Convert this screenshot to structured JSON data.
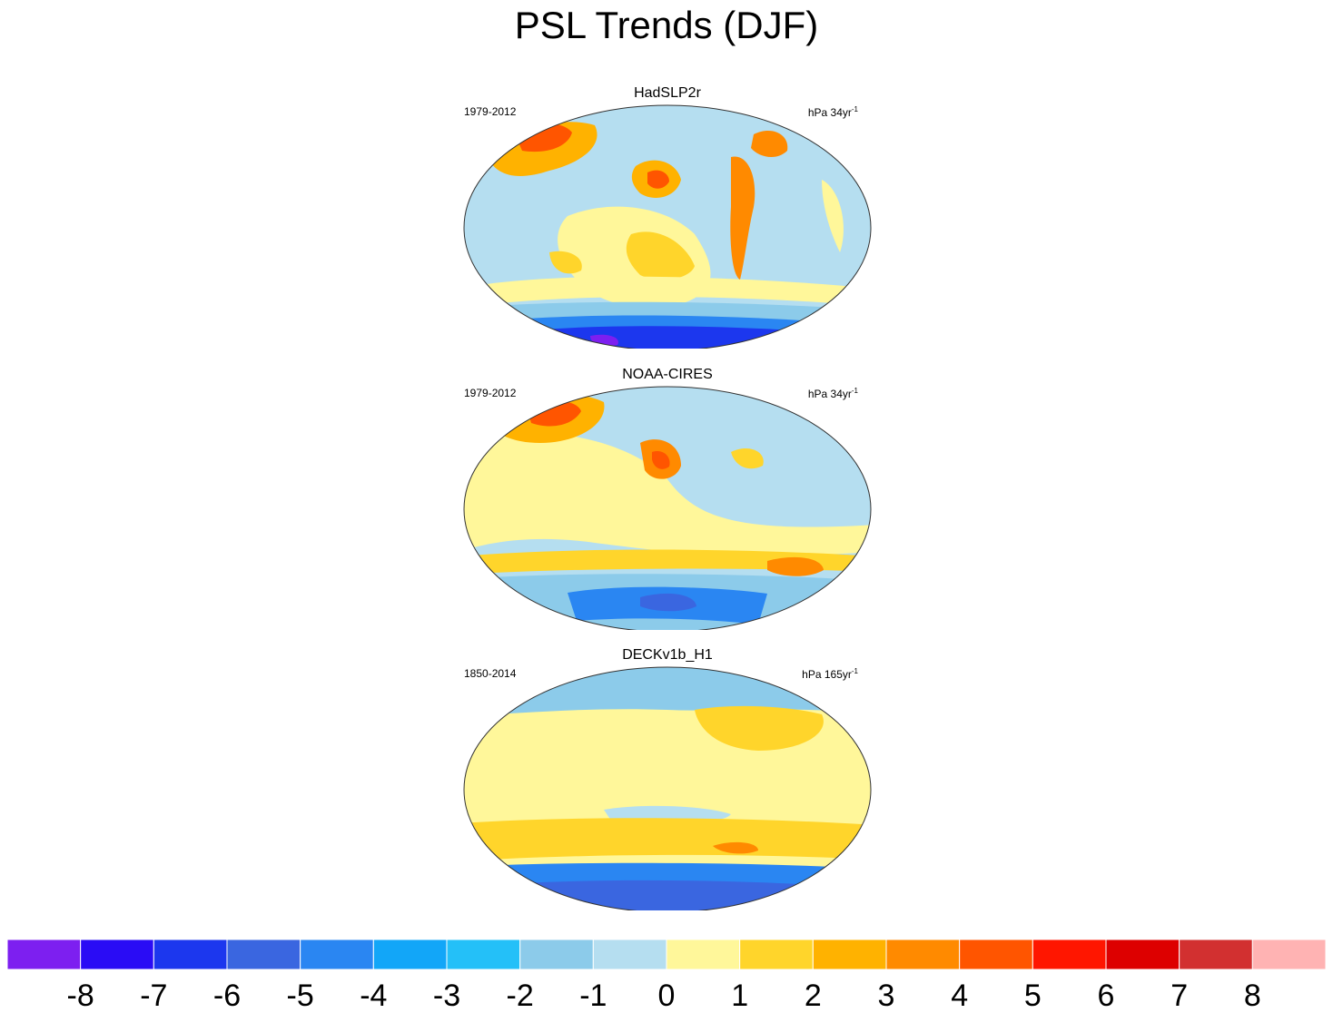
{
  "title": "PSL Trends (DJF)",
  "panels": [
    {
      "name": "HadSLP2r",
      "period": "1979-2012",
      "units": "hPa 34yr",
      "units_sup": "-1",
      "patterns": [
        {
          "kind": "ocean",
          "fill": "#b5def0"
        },
        {
          "fill": "#fff79a"
        },
        {
          "fill": "#ffd52b"
        },
        {
          "fill": "#ffb200"
        },
        {
          "fill": "#ff8a00"
        },
        {
          "fill": "#ff5500"
        },
        {
          "fill": "#8ccbea"
        },
        {
          "fill": "#1e3cf0"
        },
        {
          "fill": "#7a1cf0"
        }
      ]
    },
    {
      "name": "NOAA-CIRES",
      "period": "1979-2012",
      "units": "hPa 34yr",
      "units_sup": "-1"
    },
    {
      "name": "DECKv1b_H1",
      "period": "1850-2014",
      "units": "hPa 165yr",
      "units_sup": "-1"
    }
  ],
  "chart_data": {
    "type": "heatmap",
    "title": "PSL Trends (DJF)",
    "variable": "PSL",
    "season": "DJF",
    "panels": [
      {
        "title": "HadSLP2r",
        "period": "1979-2012",
        "units": "hPa 34yr-1"
      },
      {
        "title": "NOAA-CIRES",
        "period": "1979-2012",
        "units": "hPa 34yr-1"
      },
      {
        "title": "DECKv1b_H1",
        "period": "1850-2014",
        "units": "hPa 165yr-1"
      }
    ],
    "colorbar": {
      "levels": [
        -8,
        -7,
        -6,
        -5,
        -4,
        -3,
        -2,
        -1,
        0,
        1,
        2,
        3,
        4,
        5,
        6,
        7,
        8
      ],
      "labels": [
        "-8",
        "-7",
        "-6",
        "-5",
        "-4",
        "-3",
        "-2",
        "-1",
        "0",
        "1",
        "2",
        "3",
        "4",
        "5",
        "6",
        "7",
        "8"
      ],
      "colors": [
        "#7d1ff0",
        "#2a0cf5",
        "#1c37ee",
        "#3a66e0",
        "#2a86f2",
        "#12a6f8",
        "#24c0f8",
        "#8ccbea",
        "#b5def0",
        "#fff79a",
        "#ffd52b",
        "#ffb200",
        "#ff8a00",
        "#ff5500",
        "#ff1600",
        "#dd0000",
        "#d23030",
        "#ffb3b3"
      ]
    }
  }
}
